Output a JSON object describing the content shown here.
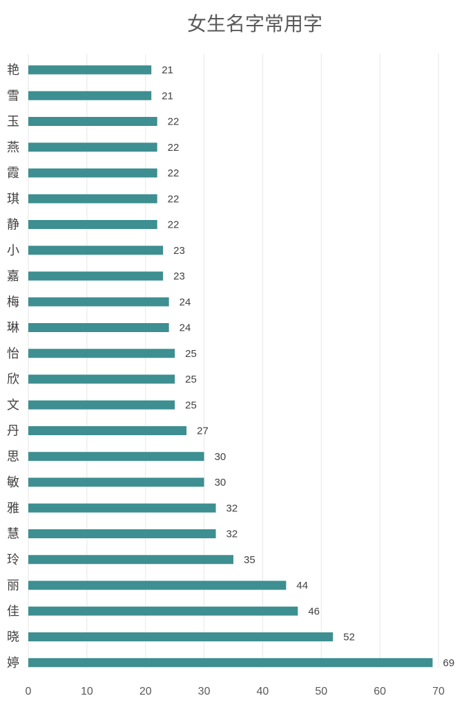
{
  "chart_data": {
    "type": "bar",
    "orientation": "horizontal",
    "title": "女生名字常用字",
    "xlabel": "",
    "ylabel": "",
    "categories": [
      "艳",
      "雪",
      "玉",
      "燕",
      "霞",
      "琪",
      "静",
      "小",
      "嘉",
      "梅",
      "琳",
      "怡",
      "欣",
      "文",
      "丹",
      "思",
      "敏",
      "雅",
      "慧",
      "玲",
      "丽",
      "佳",
      "晓",
      "婷"
    ],
    "values": [
      21,
      21,
      22,
      22,
      22,
      22,
      22,
      23,
      23,
      24,
      24,
      25,
      25,
      25,
      27,
      30,
      30,
      32,
      32,
      35,
      44,
      46,
      52,
      69
    ],
    "xlim": [
      0,
      70
    ],
    "xticks": [
      "0",
      "10",
      "20",
      "30",
      "40",
      "50",
      "60",
      "70"
    ],
    "grid": true,
    "legend": "none",
    "bar_color": "#3d8f91"
  }
}
